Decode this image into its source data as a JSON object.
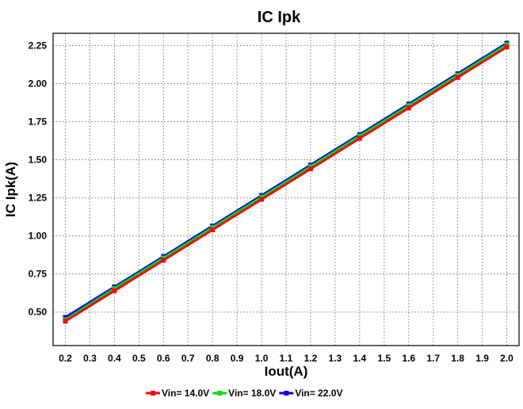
{
  "chart_data": {
    "type": "line",
    "title": "IC Ipk",
    "xlabel": "Iout(A)",
    "ylabel": "IC Ipk(A)",
    "x": [
      0.2,
      0.4,
      0.6,
      0.8,
      1.0,
      1.2,
      1.4,
      1.6,
      1.8,
      2.0
    ],
    "xticks": [
      "0.2",
      "0.3",
      "0.4",
      "0.5",
      "0.6",
      "0.7",
      "0.8",
      "0.9",
      "1.0",
      "1.1",
      "1.2",
      "1.3",
      "1.4",
      "1.5",
      "1.6",
      "1.7",
      "1.8",
      "1.9",
      "2.0"
    ],
    "yticks": [
      "0.50",
      "0.75",
      "1.00",
      "1.25",
      "1.50",
      "1.75",
      "2.00",
      "2.25"
    ],
    "xlim": [
      0.15,
      2.05
    ],
    "ylim": [
      0.28,
      2.33
    ],
    "grid": true,
    "legend_position": "bottom-center",
    "series": [
      {
        "name": "Vin= 14.0V",
        "color": "#ff0000",
        "values": [
          0.44,
          0.64,
          0.84,
          1.04,
          1.24,
          1.44,
          1.64,
          1.84,
          2.04,
          2.24
        ]
      },
      {
        "name": "Vin= 18.0V",
        "color": "#00dd00",
        "values": [
          0.45,
          0.655,
          0.855,
          1.055,
          1.255,
          1.455,
          1.655,
          1.855,
          2.055,
          2.255
        ]
      },
      {
        "name": "Vin= 22.0V",
        "color": "#0000ee",
        "values": [
          0.465,
          0.665,
          0.865,
          1.065,
          1.265,
          1.465,
          1.665,
          1.865,
          2.065,
          2.265
        ]
      }
    ]
  }
}
